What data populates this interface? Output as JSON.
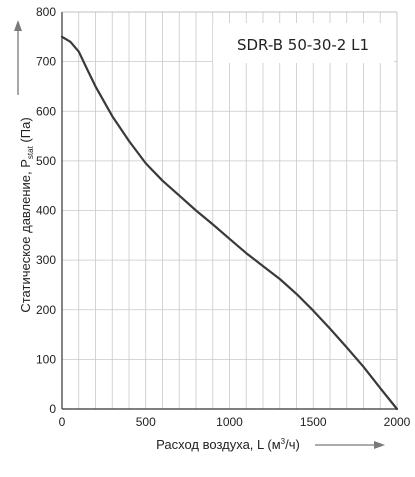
{
  "chart_data": {
    "type": "line",
    "title": "SDR-B 50-30-2 L1",
    "xlabel_prefix": "Расход воздуха, L (м",
    "xlabel_sup": "3",
    "xlabel_suffix": "/ч)",
    "ylabel_prefix": "Статическое давление, P",
    "ylabel_sub": "stat",
    "ylabel_suffix": " (Па)",
    "xlim": [
      0,
      2000
    ],
    "ylim": [
      0,
      800
    ],
    "x_ticks": [
      0,
      500,
      1000,
      1500,
      2000
    ],
    "y_ticks": [
      0,
      100,
      200,
      300,
      400,
      500,
      600,
      700,
      800
    ],
    "grid": true,
    "series": [
      {
        "x": [
          0,
          50,
          100,
          150,
          200,
          300,
          400,
          500,
          600,
          700,
          800,
          900,
          1000,
          1100,
          1200,
          1300,
          1400,
          1500,
          1600,
          1700,
          1800,
          1900,
          2000
        ],
        "y": [
          750,
          740,
          720,
          685,
          650,
          590,
          540,
          495,
          460,
          430,
          400,
          372,
          343,
          314,
          288,
          262,
          232,
          198,
          162,
          124,
          85,
          42,
          0
        ]
      }
    ]
  }
}
